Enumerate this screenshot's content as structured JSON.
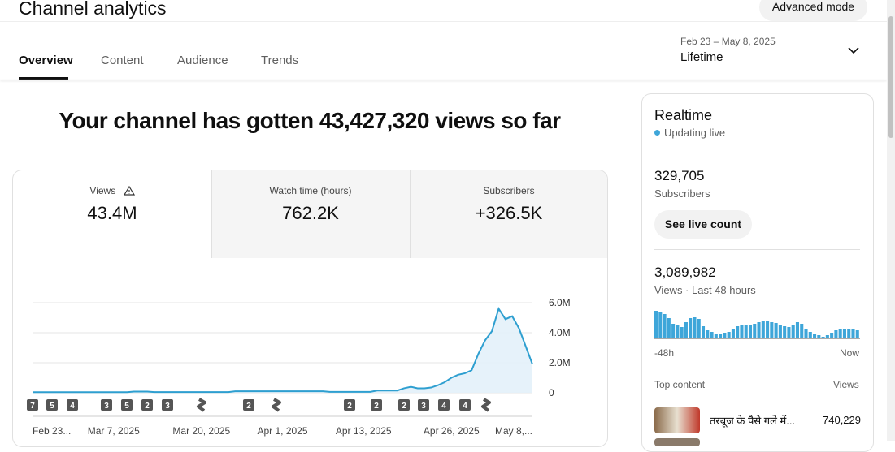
{
  "header": {
    "title": "Channel analytics",
    "advanced_button": "Advanced mode"
  },
  "tabs": [
    "Overview",
    "Content",
    "Audience",
    "Trends"
  ],
  "date_range": {
    "range": "Feb 23 – May 8, 2025",
    "period": "Lifetime"
  },
  "headline": "Your channel has gotten 43,427,320 views so far",
  "metrics": [
    {
      "label": "Views",
      "value": "43.4M"
    },
    {
      "label": "Watch time (hours)",
      "value": "762.2K"
    },
    {
      "label": "Subscribers",
      "value": "+326.5K"
    }
  ],
  "chart_data": {
    "type": "line",
    "color": "#2e9fd0",
    "categories": [
      "Feb 23...",
      null,
      null,
      null,
      null,
      null,
      null,
      null,
      null,
      null,
      null,
      null,
      "Mar 7, 2025",
      null,
      null,
      null,
      null,
      null,
      null,
      null,
      null,
      null,
      null,
      null,
      null,
      "Mar 20, 2025",
      null,
      null,
      null,
      null,
      null,
      null,
      null,
      null,
      null,
      null,
      null,
      "Apr 1, 2025",
      null,
      null,
      null,
      null,
      null,
      null,
      null,
      null,
      null,
      null,
      null,
      "Apr 13, 2025",
      null,
      null,
      null,
      null,
      null,
      null,
      null,
      null,
      null,
      null,
      null,
      null,
      "Apr 26, 2025",
      null,
      null,
      null,
      null,
      null,
      null,
      null,
      null,
      null,
      null,
      null,
      "May 8,..."
    ],
    "values": [
      40000,
      40000,
      40000,
      40000,
      40000,
      40000,
      40000,
      40000,
      40000,
      40000,
      40000,
      40000,
      40000,
      40000,
      40000,
      80000,
      80000,
      80000,
      50000,
      50000,
      50000,
      50000,
      50000,
      50000,
      50000,
      50000,
      50000,
      50000,
      50000,
      50000,
      100000,
      100000,
      100000,
      100000,
      100000,
      100000,
      100000,
      100000,
      100000,
      100000,
      100000,
      100000,
      100000,
      100000,
      60000,
      60000,
      60000,
      60000,
      60000,
      60000,
      60000,
      150000,
      150000,
      150000,
      150000,
      300000,
      400000,
      300000,
      300000,
      350000,
      500000,
      700000,
      1000000,
      1200000,
      1300000,
      1500000,
      2600000,
      3500000,
      4100000,
      5600000,
      4900000,
      5100000,
      4300000,
      3100000,
      1900000
    ],
    "ylim": [
      0,
      6000000
    ],
    "yticks": [
      0,
      {
        "value": 2000000,
        "label": "2.0M"
      },
      {
        "value": 4000000,
        "label": "4.0M"
      },
      {
        "value": 6000000,
        "label": "6.0M"
      }
    ],
    "grid": true
  },
  "badges": [
    "7",
    "5",
    "4",
    "3",
    "5",
    "2",
    "3",
    "2",
    "2",
    "2",
    "2",
    "3",
    "4",
    "4"
  ],
  "realtime": {
    "title": "Realtime",
    "status": "Updating live",
    "subscribers": "329,705",
    "subscribers_label": "Subscribers",
    "button": "See live count",
    "views": "3,089,982",
    "views_label": "Views · Last 48 hours",
    "hourly": [
      34,
      32,
      30,
      25,
      18,
      16,
      14,
      20,
      25,
      26,
      24,
      15,
      10,
      8,
      6,
      6,
      7,
      8,
      12,
      15,
      16,
      16,
      17,
      18,
      20,
      22,
      21,
      20,
      19,
      17,
      15,
      14,
      16,
      20,
      18,
      12,
      8,
      6,
      4,
      2,
      4,
      7,
      10,
      11,
      12,
      11,
      11,
      10
    ],
    "start_label": "-48h",
    "end_label": "Now",
    "top_content_label": "Top content",
    "views_column": "Views",
    "top_content": [
      {
        "title": "तरबूज के पैसे गले में...",
        "views": "740,229"
      }
    ]
  }
}
